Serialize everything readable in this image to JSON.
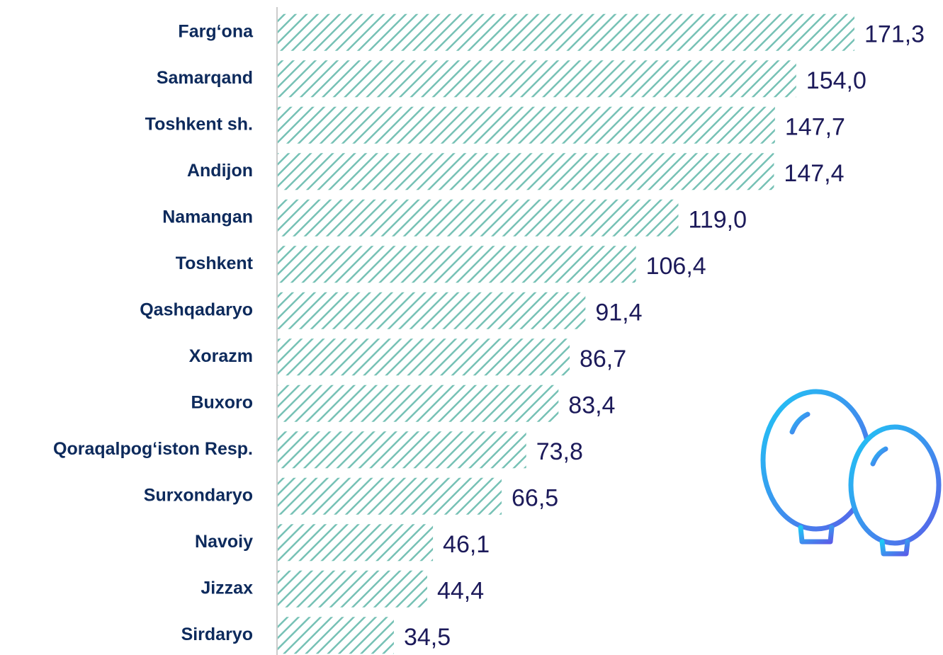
{
  "chart_data": {
    "type": "bar",
    "orientation": "horizontal",
    "color": "#76c1b5",
    "pattern": "hatch",
    "categories": [
      "Farg‘ona",
      "Samarqand",
      "Toshkent sh.",
      "Andijon",
      "Namangan",
      "Toshkent",
      "Qashqadaryo",
      "Xorazm",
      "Buxoro",
      "Qoraqalpog‘iston Resp.",
      "Surxondaryo",
      "Navoiy",
      "Jizzax",
      "Sirdaryo"
    ],
    "values": [
      171.3,
      154.0,
      147.7,
      147.4,
      119.0,
      106.4,
      91.4,
      86.7,
      83.4,
      73.8,
      66.5,
      46.1,
      44.4,
      34.5
    ],
    "value_labels": [
      "171,3",
      "154,0",
      "147,7",
      "147,4",
      "119,0",
      "106,4",
      "91,4",
      "86,7",
      "83,4",
      "73,8",
      "66,5",
      "46,1",
      "44,4",
      "34,5"
    ]
  }
}
